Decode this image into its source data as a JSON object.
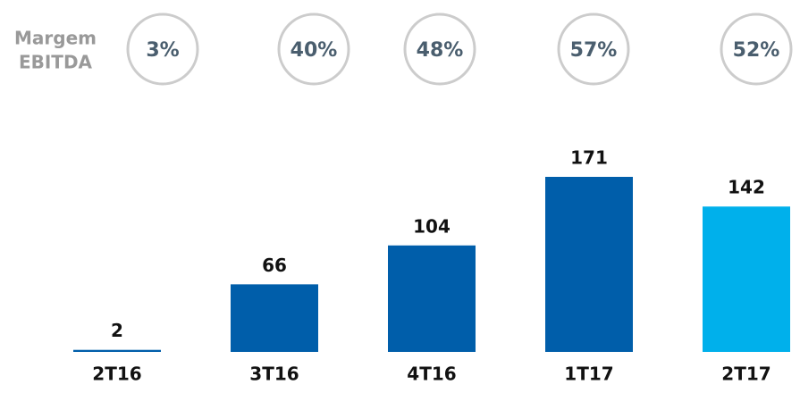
{
  "chart_data": {
    "type": "bar",
    "margin_label": [
      "Margem",
      "EBITDA"
    ],
    "margins": [
      3,
      40,
      48,
      57,
      52
    ],
    "margin_labels": [
      "3%",
      "40%",
      "48%",
      "57%",
      "52%"
    ],
    "categories": [
      "2T16",
      "3T16",
      "4T16",
      "1T17",
      "2T17"
    ],
    "values": [
      2,
      66,
      104,
      171,
      142
    ],
    "colors": [
      "#005eaa",
      "#005eaa",
      "#005eaa",
      "#005eaa",
      "#00b0eb"
    ]
  }
}
